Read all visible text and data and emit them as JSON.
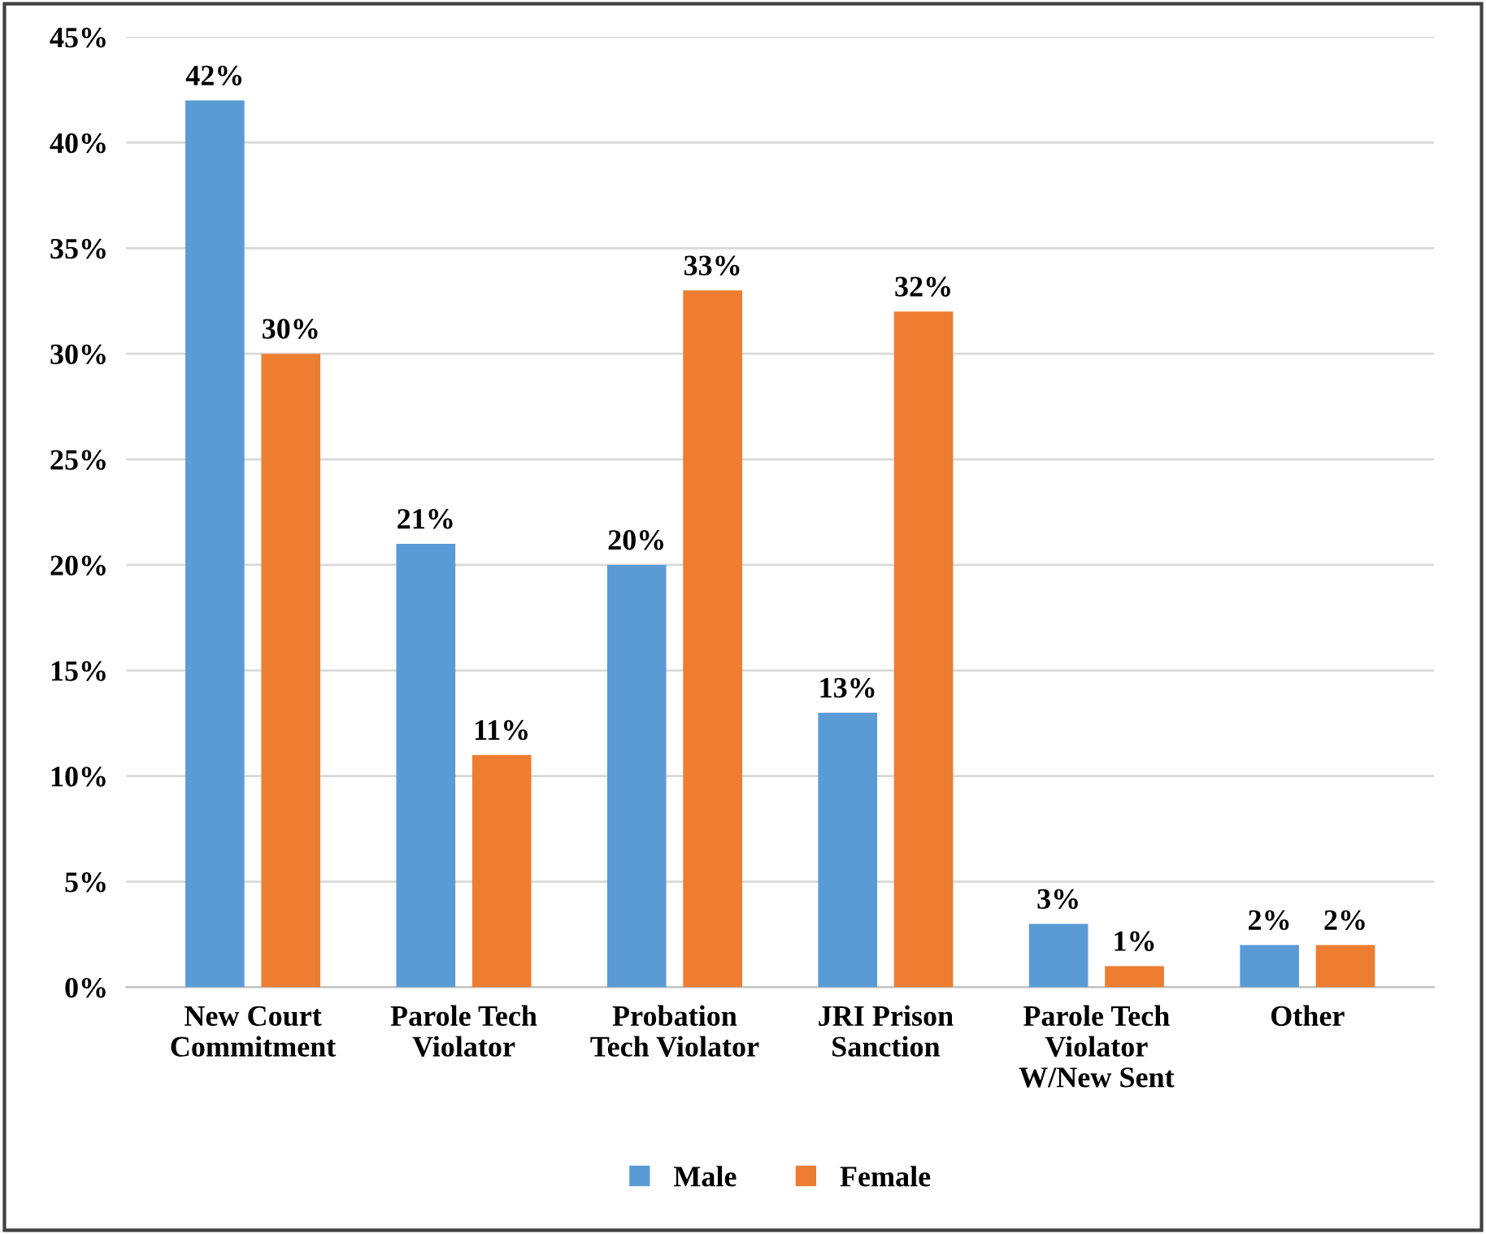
{
  "chart_data": {
    "type": "bar",
    "categories": [
      "New Court\nCommitment",
      "Parole Tech\nViolator",
      "Probation\nTech Violator",
      "JRI Prison\nSanction",
      "Parole Tech\nViolator\nW/New Sent",
      "Other"
    ],
    "series": [
      {
        "name": "Male",
        "color": "#5b9bd5",
        "values": [
          42,
          21,
          20,
          13,
          3,
          2
        ],
        "value_labels": [
          "42%",
          "21%",
          "20%",
          "13%",
          "3%",
          "2%"
        ]
      },
      {
        "name": "Female",
        "color": "#ed7d31",
        "values": [
          30,
          11,
          33,
          32,
          1,
          2
        ],
        "value_labels": [
          "30%",
          "11%",
          "33%",
          "32%",
          "1%",
          "2%"
        ]
      }
    ],
    "ylim": [
      0,
      45
    ],
    "yticks": [
      {
        "value": 0,
        "label": "0%"
      },
      {
        "value": 5,
        "label": "5%"
      },
      {
        "value": 10,
        "label": "10%"
      },
      {
        "value": 15,
        "label": "15%"
      },
      {
        "value": 20,
        "label": "20%"
      },
      {
        "value": 25,
        "label": "25%"
      },
      {
        "value": 30,
        "label": "30%"
      },
      {
        "value": 35,
        "label": "35%"
      },
      {
        "value": 40,
        "label": "40%"
      },
      {
        "value": 45,
        "label": "45%"
      }
    ],
    "grid": "y",
    "legend": "bottom"
  }
}
